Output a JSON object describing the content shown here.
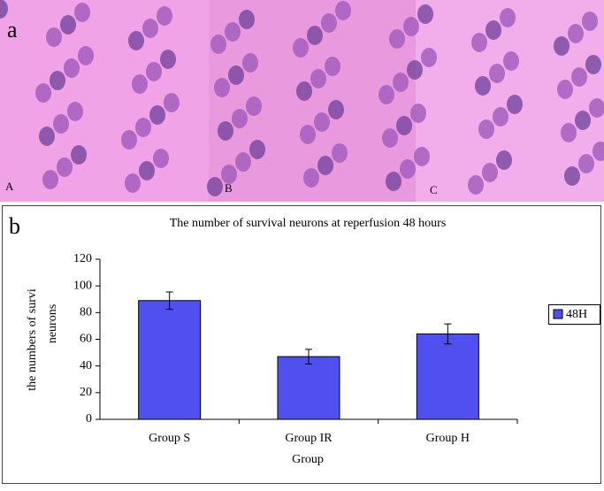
{
  "panel_labels": {
    "a": "a",
    "b": "b",
    "images": [
      "A",
      "B",
      "C"
    ]
  },
  "chart_data": {
    "type": "bar",
    "title": "The number of survival neurons at reperfusion 48 hours",
    "x_label": "Group",
    "y_label": [
      "the numbers of survi",
      "neurons"
    ],
    "categories": [
      "Group S",
      "Group IR",
      "Group H"
    ],
    "series": [
      {
        "name": "48H",
        "color": "#5050f0",
        "values": [
          89,
          47,
          64
        ],
        "errors": [
          6.5,
          5.5,
          7.5
        ]
      }
    ],
    "ylim": [
      0,
      120
    ],
    "yticks": [
      0,
      20,
      40,
      60,
      80,
      100,
      120
    ],
    "legend": "right"
  }
}
